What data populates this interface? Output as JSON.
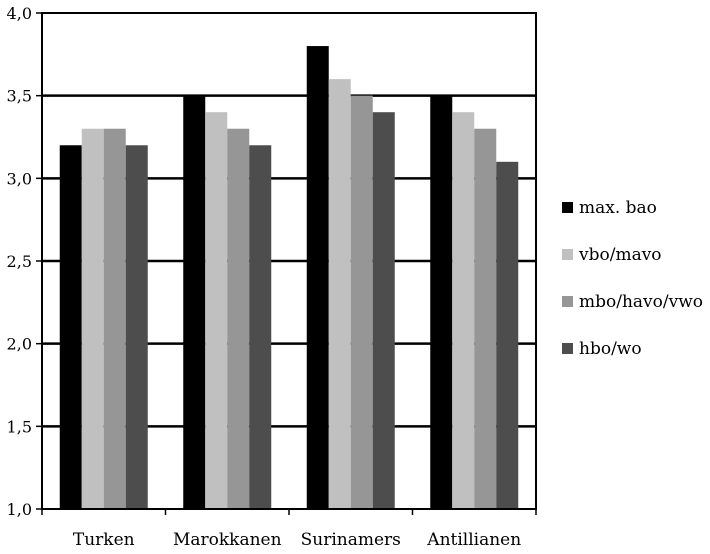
{
  "chart_data": {
    "type": "bar",
    "categories": [
      "Turken",
      "Marokkanen",
      "Surinamers",
      "Antillianen"
    ],
    "series": [
      {
        "name": "max. bao",
        "color": "#000000",
        "values": [
          3.2,
          3.5,
          3.8,
          3.5
        ]
      },
      {
        "name": "vbo/mavo",
        "color": "#c0c0c0",
        "values": [
          3.3,
          3.4,
          3.6,
          3.4
        ]
      },
      {
        "name": "mbo/havo/vwo",
        "color": "#969696",
        "values": [
          3.3,
          3.3,
          3.5,
          3.3
        ]
      },
      {
        "name": "hbo/wo",
        "color": "#4d4d4d",
        "values": [
          3.2,
          3.2,
          3.4,
          3.1
        ]
      }
    ],
    "ylim": [
      1.0,
      4.0
    ],
    "yticks": [
      1.0,
      1.5,
      2.0,
      2.5,
      3.0,
      3.5,
      4.0
    ],
    "ytick_labels": [
      "1,0",
      "1,5",
      "2,0",
      "2,5",
      "3,0",
      "3,5",
      "4,0"
    ],
    "grid": true,
    "legend_position": "right",
    "title": "",
    "xlabel": "",
    "ylabel": ""
  }
}
